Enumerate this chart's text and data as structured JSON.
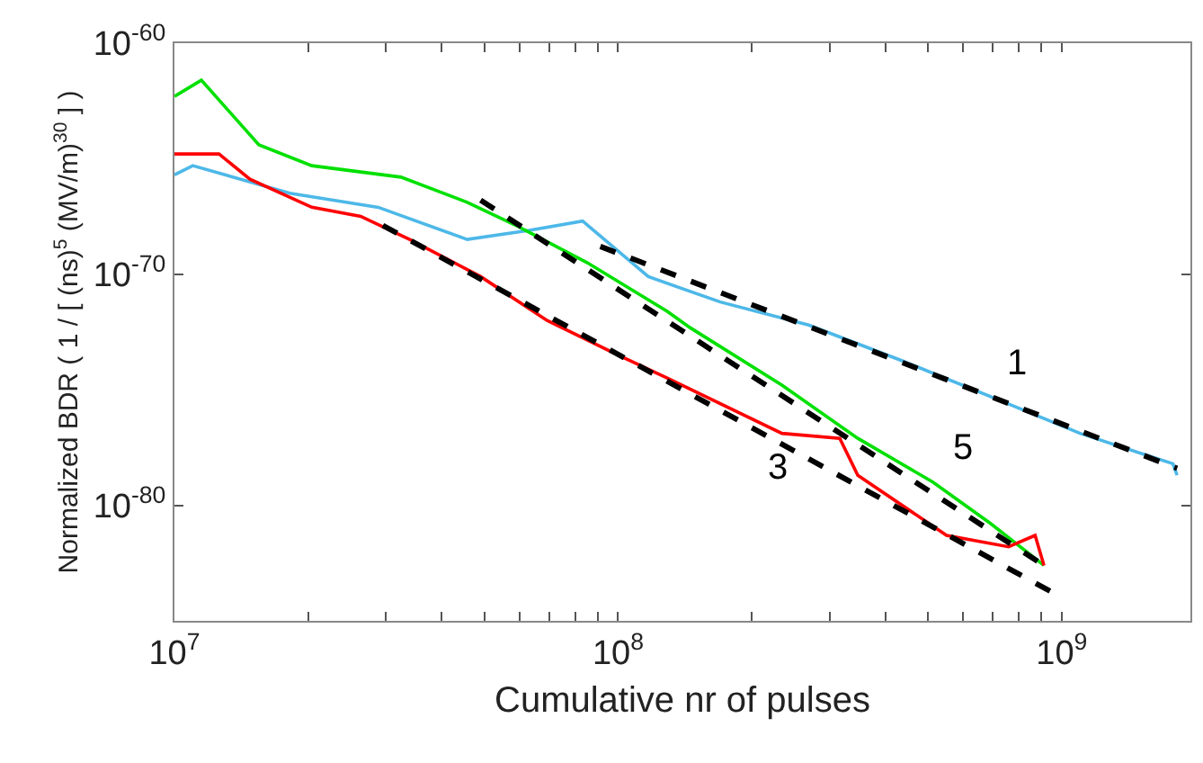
{
  "chart_data": {
    "type": "line",
    "xlabel": "Cumulative nr of pulses",
    "ylabel": "Normalized BDR ( 1 / [ (ns)$^{5}$ (MV/m)$^{30}$ ] )",
    "log": "xy",
    "marker": "none",
    "xlim": [
      10000000.0,
      1950000000.0
    ],
    "ylim": [
      1e-85,
      1e-60
    ],
    "xticks": [
      {
        "value": 10000000.0,
        "label": "10$^{7}$"
      },
      {
        "value": 20000000.0,
        "label": null
      },
      {
        "value": 30000000.0,
        "label": null
      },
      {
        "value": 40000000.0,
        "label": null
      },
      {
        "value": 50000000.0,
        "label": null
      },
      {
        "value": 60000000.0,
        "label": null
      },
      {
        "value": 70000000.0,
        "label": null
      },
      {
        "value": 80000000.0,
        "label": null
      },
      {
        "value": 90000000.0,
        "label": null
      },
      {
        "value": 100000000.0,
        "label": "10$^{8}$"
      },
      {
        "value": 200000000.0,
        "label": null
      },
      {
        "value": 300000000.0,
        "label": null
      },
      {
        "value": 400000000.0,
        "label": null
      },
      {
        "value": 500000000.0,
        "label": null
      },
      {
        "value": 600000000.0,
        "label": null
      },
      {
        "value": 700000000.0,
        "label": null
      },
      {
        "value": 800000000.0,
        "label": null
      },
      {
        "value": 900000000.0,
        "label": null
      },
      {
        "value": 1000000000.0,
        "label": "10$^{9}$"
      }
    ],
    "yticks": [
      {
        "value": 1e-80,
        "label": "10$^{-80}$"
      },
      {
        "value": 1e-70,
        "label": "10$^{-70}$"
      },
      {
        "value": 1e-60,
        "label": "10$^{-60}$"
      }
    ],
    "series": [
      {
        "color": "#4db8e8",
        "line_style": "solid",
        "x": [
          10000000.0,
          11000000.0,
          18200000.0,
          28800000.0,
          45700000.0,
          63100000.0,
          83200000.0,
          117000000.0,
          170000000.0,
          269000000.0,
          437000000.0,
          692000000.0,
          1100000000.0,
          1780000000.0,
          1820000000.0
        ],
        "values": [
          2e-66,
          5e-66,
          3.2e-67,
          7.9e-68,
          3.2e-69,
          7.9e-69,
          2e-68,
          7.9e-71,
          6.3e-72,
          6.3e-73,
          1.8e-74,
          5e-76,
          1.3e-77,
          6.3e-79,
          2e-79
        ]
      },
      {
        "color": "#00e000",
        "line_style": "solid",
        "x": [
          10000000.0,
          11500000.0,
          15500000.0,
          20400000.0,
          32400000.0,
          45700000.0,
          58900000.0,
          85100000.0,
          129000000.0,
          145000000.0,
          234000000.0,
          347000000.0,
          513000000.0,
          692000000.0,
          912000000.0
        ],
        "values": [
          5e-63,
          2.5e-62,
          4e-65,
          5e-66,
          1.6e-66,
          1.3e-67,
          1.3e-68,
          3.2e-70,
          2.5e-72,
          5e-73,
          1.6e-75,
          7.9e-78,
          1e-79,
          1.6e-81,
          2.5e-83
        ]
      },
      {
        "color": "#ff0000",
        "line_style": "solid",
        "x": [
          10000000.0,
          12600000.0,
          14800000.0,
          20400000.0,
          26300000.0,
          33900000.0,
          49000000.0,
          69200000.0,
          100000000.0,
          129000000.0,
          234000000.0,
          316000000.0,
          347000000.0,
          550000000.0,
          759000000.0,
          871000000.0,
          912000000.0
        ],
        "values": [
          1.6e-65,
          1.6e-65,
          1.3e-66,
          7.9e-68,
          3.2e-68,
          3.2e-69,
          7.9e-71,
          1e-72,
          3.2e-74,
          3.2e-75,
          1.3e-77,
          7.9e-78,
          2e-79,
          5e-82,
          1.6e-82,
          5e-82,
          2.5e-83
        ]
      },
      {
        "color": "#000000",
        "line_style": "dashed",
        "x": [
          91200000.0,
          1820000000.0
        ],
        "values": [
          1.6e-69,
          4e-79
        ]
      },
      {
        "color": "#000000",
        "line_style": "dashed",
        "x": [
          49000000.0,
          912000000.0
        ],
        "values": [
          1.6e-67,
          2.5e-83
        ]
      },
      {
        "color": "#000000",
        "line_style": "dashed",
        "x": [
          29500000.0,
          977000000.0
        ],
        "values": [
          1.3e-68,
          1.3e-84
        ]
      }
    ],
    "annotations": [
      "1",
      "5",
      "3"
    ]
  }
}
